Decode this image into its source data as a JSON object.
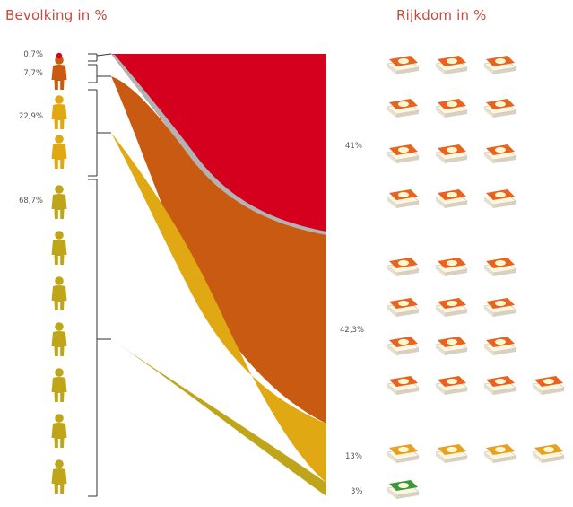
{
  "titles": {
    "population": "Bevolking in %",
    "wealth": "Rijkdom in %"
  },
  "population": [
    {
      "label": "0,7%",
      "value": 0.7,
      "color": "#d4001e"
    },
    {
      "label": "7,7%",
      "value": 7.7,
      "color": "#c85a12"
    },
    {
      "label": "22,9%",
      "value": 22.9,
      "color": "#e0a812"
    },
    {
      "label": "68,7%",
      "value": 68.7,
      "color": "#bfa51a"
    }
  ],
  "wealth": [
    {
      "label": "41%",
      "value": 41,
      "color": "#d4001e"
    },
    {
      "label": "42,3%",
      "value": 42.3,
      "color": "#c85a12"
    },
    {
      "label": "13%",
      "value": 13,
      "color": "#e0a812"
    },
    {
      "label": "3%",
      "value": 3,
      "color": "#bfa51a"
    }
  ],
  "icons": {
    "person": "person-icon",
    "wealth": "money-stack-icon"
  }
}
